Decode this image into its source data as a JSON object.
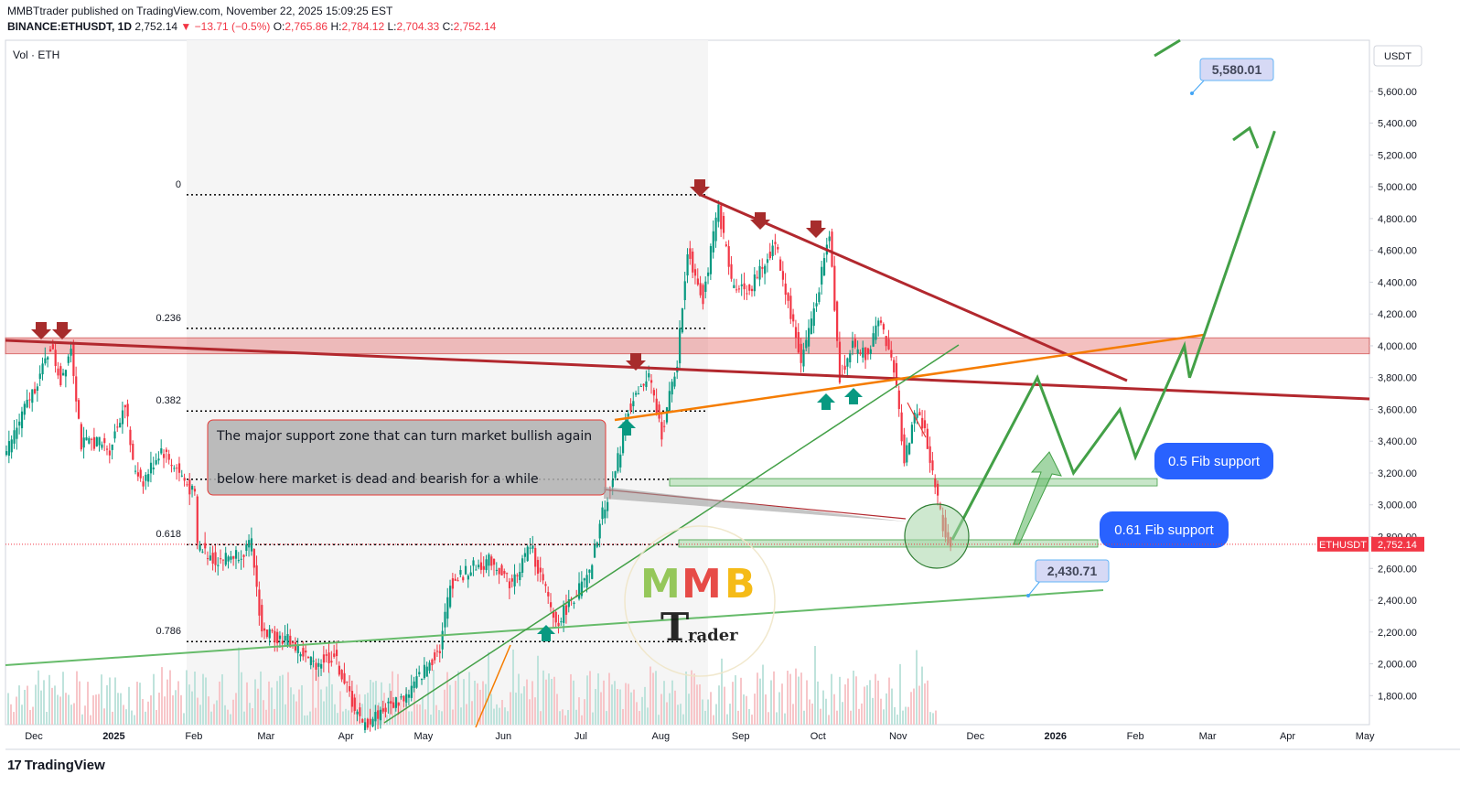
{
  "header": {
    "published_line": "MMBTtrader published on TradingView.com, November 22, 2025 15:09:25 EST",
    "author": "MMBTtrader",
    "symbol": "BINANCE:ETHUSDT, 1D",
    "last": "2,752.14",
    "change": "▼ −13.71 (−0.5%)",
    "o_label": "O:",
    "o": "2,765.86",
    "h_label": "H:",
    "h": "2,784.12",
    "l_label": "L:",
    "l": "2,704.33",
    "c_label": "C:",
    "c": "2,752.14"
  },
  "footer": {
    "brand": "TradingView",
    "logo_glyph": "17"
  },
  "chart_data": {
    "type": "candlestick",
    "instrument": "ETHUSDT",
    "timeframe": "1D",
    "currency_label": "USDT",
    "volume_label": "Vol · ETH",
    "last_price": 2752.14,
    "last_price_label": "2,752.14",
    "price_tag_label": "ETHUSDT",
    "y_axis_ticks": [
      1800,
      2000,
      2200,
      2400,
      2600,
      2800,
      3000,
      3200,
      3400,
      3600,
      3800,
      4000,
      4200,
      4400,
      4600,
      4800,
      5000,
      5200,
      5400,
      5600
    ],
    "y_axis_tick_labels": [
      "1,800.00",
      "2,000.00",
      "2,200.00",
      "2,400.00",
      "2,600.00",
      "2,800.00",
      "3,000.00",
      "3,200.00",
      "3,400.00",
      "3,600.00",
      "3,800.00",
      "4,000.00",
      "4,200.00",
      "4,400.00",
      "4,600.00",
      "4,800.00",
      "5,000.00",
      "5,200.00",
      "5,400.00",
      "5,600.00"
    ],
    "x_axis_labels": [
      "Dec",
      "2025",
      "Feb",
      "Mar",
      "Apr",
      "May",
      "Jun",
      "Jul",
      "Aug",
      "Sep",
      "Oct",
      "Nov",
      "Dec",
      "2026",
      "Feb",
      "Mar",
      "Apr",
      "May"
    ],
    "x_axis_months": [
      "2024-12-01",
      "2025-01-01",
      "2025-02-01",
      "2025-03-01",
      "2025-04-01",
      "2025-05-01",
      "2025-06-01",
      "2025-07-01",
      "2025-08-01",
      "2025-09-01",
      "2025-10-01",
      "2025-11-01",
      "2025-12-01",
      "2026-01-01",
      "2026-02-01",
      "2026-03-01",
      "2026-04-01",
      "2026-05-01"
    ],
    "price_path": [
      [
        "2024-11-20",
        3300
      ],
      [
        "2024-11-28",
        3600
      ],
      [
        "2024-12-05",
        3850
      ],
      [
        "2024-12-08",
        4000
      ],
      [
        "2024-12-12",
        3780
      ],
      [
        "2024-12-16",
        4000
      ],
      [
        "2024-12-20",
        3380
      ],
      [
        "2024-12-26",
        3400
      ],
      [
        "2024-12-31",
        3350
      ],
      [
        "2025-01-06",
        3650
      ],
      [
        "2025-01-09",
        3250
      ],
      [
        "2025-01-13",
        3150
      ],
      [
        "2025-01-20",
        3350
      ],
      [
        "2025-01-27",
        3200
      ],
      [
        "2025-02-02",
        3050
      ],
      [
        "2025-02-03",
        2750
      ],
      [
        "2025-02-10",
        2650
      ],
      [
        "2025-02-20",
        2700
      ],
      [
        "2025-02-24",
        2750
      ],
      [
        "2025-02-28",
        2200
      ],
      [
        "2025-03-10",
        2150
      ],
      [
        "2025-03-20",
        2000
      ],
      [
        "2025-03-28",
        2050
      ],
      [
        "2025-04-08",
        1600
      ],
      [
        "2025-04-15",
        1700
      ],
      [
        "2025-04-25",
        1800
      ],
      [
        "2025-05-08",
        2100
      ],
      [
        "2025-05-12",
        2500
      ],
      [
        "2025-05-20",
        2600
      ],
      [
        "2025-05-28",
        2650
      ],
      [
        "2025-06-05",
        2500
      ],
      [
        "2025-06-12",
        2750
      ],
      [
        "2025-06-22",
        2250
      ],
      [
        "2025-06-30",
        2450
      ],
      [
        "2025-07-05",
        2550
      ],
      [
        "2025-07-10",
        2950
      ],
      [
        "2025-07-15",
        3200
      ],
      [
        "2025-07-20",
        3600
      ],
      [
        "2025-07-28",
        3800
      ],
      [
        "2025-08-02",
        3450
      ],
      [
        "2025-08-08",
        3900
      ],
      [
        "2025-08-12",
        4600
      ],
      [
        "2025-08-18",
        4300
      ],
      [
        "2025-08-24",
        4870
      ],
      [
        "2025-08-29",
        4400
      ],
      [
        "2025-09-05",
        4350
      ],
      [
        "2025-09-12",
        4550
      ],
      [
        "2025-09-15",
        4650
      ],
      [
        "2025-09-25",
        3900
      ],
      [
        "2025-10-01",
        4300
      ],
      [
        "2025-10-06",
        4700
      ],
      [
        "2025-10-10",
        3800
      ],
      [
        "2025-10-15",
        4000
      ],
      [
        "2025-10-20",
        3950
      ],
      [
        "2025-10-26",
        4150
      ],
      [
        "2025-10-31",
        3850
      ],
      [
        "2025-11-04",
        3300
      ],
      [
        "2025-11-09",
        3600
      ],
      [
        "2025-11-12",
        3450
      ],
      [
        "2025-11-16",
        3100
      ],
      [
        "2025-11-20",
        2800
      ],
      [
        "2025-11-22",
        2752
      ]
    ],
    "fib_levels": [
      {
        "label": "0",
        "price": 4950
      },
      {
        "label": "0.236",
        "price": 4110
      },
      {
        "label": "0.382",
        "price": 3590
      },
      {
        "label": "0.5",
        "price": 3160
      },
      {
        "label": "0.618",
        "price": 2750
      },
      {
        "label": "0.786",
        "price": 2140
      }
    ],
    "resistance_zone": {
      "from": 3950,
      "to": 4050
    },
    "annotations": {
      "main_note_line1": "The major support zone that can turn market bullish again",
      "main_note_line2": "below here market is dead and bearish for a while",
      "fib05_label": "0.5 Fib support",
      "fib061_label": "0.61 Fib support",
      "target_high_label": "5,580.01",
      "target_low_label": "2,430.71"
    },
    "watermark": {
      "letters": [
        "M",
        "M",
        "B"
      ],
      "sub": "Trader",
      "sub_initial": "T",
      "sub_rest": "rader"
    },
    "projection_path": [
      [
        "2025-11-22",
        2780
      ],
      [
        "2025-12-25",
        3800
      ],
      [
        "2026-01-08",
        3200
      ],
      [
        "2026-01-26",
        3600
      ],
      [
        "2026-02-01",
        3300
      ],
      [
        "2026-02-20",
        4000
      ],
      [
        "2026-02-22",
        3800
      ],
      [
        "2026-03-27",
        5350
      ]
    ],
    "colors": {
      "up": "#089981",
      "down": "#f23645",
      "resistance": "#b2282e",
      "zone": "#e57373",
      "projection": "#43a047",
      "orange": "#f57c00",
      "label_bg": "#2962ff",
      "note_bg": "#b0b0b0"
    },
    "grid": false,
    "legend": "none"
  }
}
